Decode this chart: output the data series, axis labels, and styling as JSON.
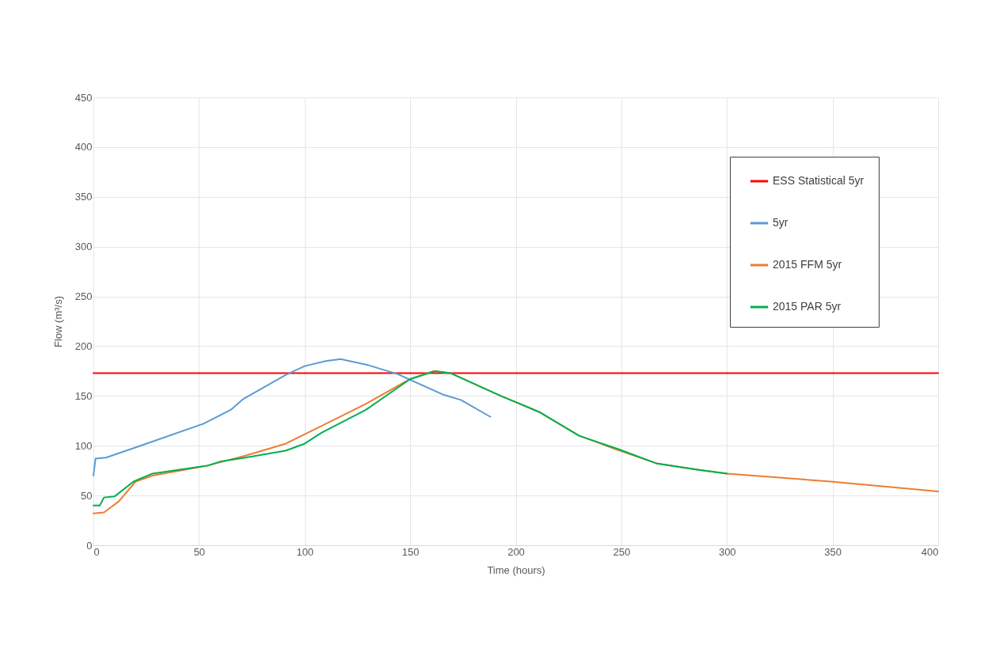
{
  "chart_data": {
    "type": "line",
    "xlabel": "Time (hours)",
    "ylabel": "Flow (m³/s)",
    "xlim": [
      0,
      400
    ],
    "ylim": [
      0,
      450
    ],
    "xticks": [
      0,
      50,
      100,
      150,
      200,
      250,
      300,
      350,
      400
    ],
    "yticks": [
      0,
      50,
      100,
      150,
      200,
      250,
      300,
      350,
      400,
      450
    ],
    "grid": true,
    "legend": "top right",
    "marker": "none",
    "line_style": "solid",
    "series": [
      {
        "name": "ESS Statistical 5yr",
        "color": "#ff0000",
        "x": [
          0,
          400
        ],
        "values": [
          173,
          173
        ]
      },
      {
        "name": "5yr",
        "color": "#5b9bd5",
        "x": [
          0,
          1,
          6,
          25,
          52,
          65,
          71,
          91,
          100,
          110,
          117,
          130,
          144,
          166,
          174,
          188
        ],
        "values": [
          70,
          87,
          88,
          102,
          122,
          136,
          147,
          171,
          180,
          185,
          187,
          181,
          172,
          151,
          146,
          129
        ]
      },
      {
        "name": "2015 FFM 5yr",
        "color": "#ed7d31",
        "x": [
          0,
          5,
          12,
          20,
          28,
          54,
          72,
          91,
          110,
          129,
          150,
          161,
          169,
          193,
          211,
          230,
          248,
          267,
          286,
          300,
          349,
          400
        ],
        "values": [
          32,
          33,
          44,
          64,
          70,
          80,
          90,
          102,
          122,
          142,
          167,
          175,
          173,
          150,
          134,
          110,
          96,
          82,
          76,
          72,
          64,
          54
        ]
      },
      {
        "name": "2015 PAR 5yr",
        "color": "#00b050",
        "x": [
          0,
          3,
          5,
          10,
          19,
          28,
          54,
          60,
          72,
          91,
          100,
          108,
          129,
          150,
          162,
          169,
          193,
          211,
          230,
          248,
          267,
          286,
          300
        ],
        "values": [
          40,
          40,
          48,
          49,
          64,
          72,
          80,
          84,
          88,
          95,
          102,
          113,
          136,
          167,
          175,
          173,
          150,
          134,
          110,
          97,
          82,
          76,
          72
        ]
      }
    ]
  }
}
